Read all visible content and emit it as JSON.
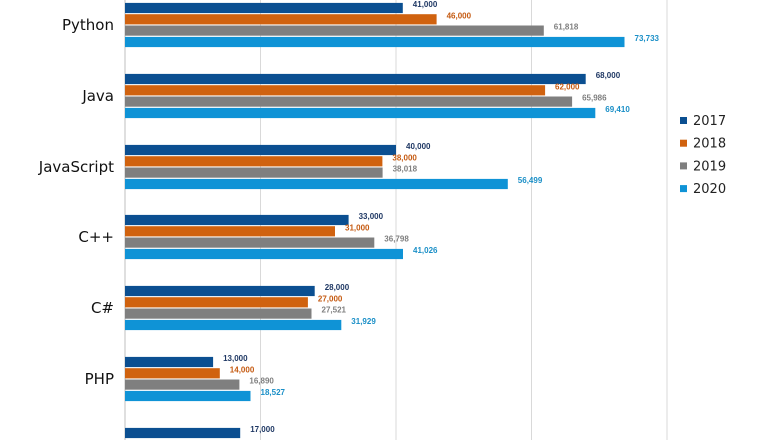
{
  "chart_data": {
    "type": "bar",
    "orientation": "horizontal",
    "categories": [
      "Python",
      "Java",
      "JavaScript",
      "C++",
      "C#",
      "PHP",
      ""
    ],
    "series": [
      {
        "name": "2017",
        "color": "#0b4f91",
        "label_color": "#1f3864",
        "values": [
          41000,
          68000,
          40000,
          33000,
          28000,
          13000,
          17000
        ],
        "labels": [
          "41,000",
          "68,000",
          "40,000",
          "33,000",
          "28,000",
          "13,000",
          "17,000"
        ]
      },
      {
        "name": "2018",
        "color": "#d0620f",
        "label_color": "#c55a11",
        "values": [
          46000,
          62000,
          38000,
          31000,
          27000,
          14000,
          null
        ],
        "labels": [
          "46,000",
          "62,000",
          "38,000",
          "31,000",
          "27,000",
          "14,000",
          ""
        ]
      },
      {
        "name": "2019",
        "color": "#7f7f7f",
        "label_color": "#7f7f7f",
        "values": [
          61818,
          65986,
          38018,
          36798,
          27521,
          16890,
          null
        ],
        "labels": [
          "61,818",
          "65,986",
          "38,018",
          "36,798",
          "27,521",
          "16,890",
          ""
        ]
      },
      {
        "name": "2020",
        "color": "#0f93d6",
        "label_color": "#1a8fc7",
        "values": [
          73733,
          69410,
          56499,
          41026,
          31929,
          18527,
          null
        ],
        "labels": [
          "73,733",
          "69,410",
          "56,499",
          "41,026",
          "31,929",
          "18,527",
          ""
        ]
      }
    ],
    "xlim": [
      0,
      80000
    ],
    "gridlines": [
      0,
      20000,
      40000,
      60000,
      80000
    ],
    "legend_position": "right",
    "grid": true
  }
}
